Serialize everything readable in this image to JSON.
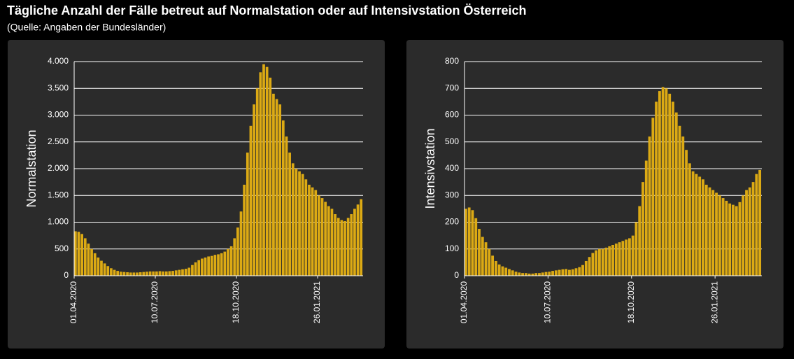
{
  "title": "Tägliche Anzahl der Fälle betreut auf Normalstation oder auf Intensivstation Österreich",
  "subtitle": "(Quelle: Angaben der Bundesländer)",
  "chart_data": [
    {
      "type": "bar",
      "ylabel": "Normalstation",
      "color": "#dcaa14",
      "categories": [
        "01.04.2020",
        null,
        null,
        null,
        null,
        null,
        null,
        null,
        null,
        null,
        null,
        null,
        null,
        null,
        null,
        null,
        null,
        null,
        null,
        null,
        null,
        null,
        null,
        null,
        null,
        "10.07.2020",
        null,
        null,
        null,
        null,
        null,
        null,
        null,
        null,
        null,
        null,
        null,
        null,
        null,
        null,
        null,
        null,
        null,
        null,
        null,
        null,
        null,
        null,
        null,
        null,
        "18.10.2020",
        null,
        null,
        null,
        null,
        null,
        null,
        null,
        null,
        null,
        null,
        null,
        null,
        null,
        null,
        null,
        null,
        null,
        null,
        null,
        null,
        null,
        null,
        null,
        null,
        "26.01.2021",
        null,
        null,
        null,
        null,
        null,
        null,
        null,
        null,
        null,
        null,
        null,
        null,
        null
      ],
      "values": [
        830,
        820,
        780,
        700,
        600,
        500,
        420,
        340,
        280,
        230,
        180,
        140,
        110,
        90,
        75,
        70,
        65,
        60,
        60,
        60,
        65,
        70,
        75,
        80,
        80,
        80,
        85,
        80,
        80,
        85,
        90,
        100,
        110,
        120,
        130,
        150,
        200,
        250,
        290,
        320,
        340,
        360,
        370,
        390,
        400,
        420,
        450,
        500,
        550,
        700,
        900,
        1200,
        1700,
        2300,
        2800,
        3200,
        3500,
        3800,
        3950,
        3900,
        3700,
        3400,
        3300,
        3200,
        2900,
        2600,
        2300,
        2100,
        2000,
        1950,
        1900,
        1800,
        1700,
        1650,
        1600,
        1500,
        1450,
        1380,
        1300,
        1250,
        1150,
        1080,
        1040,
        1020,
        1080,
        1150,
        1250,
        1330,
        1430
      ],
      "ylim": [
        0,
        4000
      ],
      "yticks": [
        0,
        500,
        {
          "value": 1000,
          "label": "1.000"
        },
        {
          "value": 1500,
          "label": "1.500"
        },
        {
          "value": 2000,
          "label": "2.000"
        },
        {
          "value": 2500,
          "label": "2.500"
        },
        {
          "value": 3000,
          "label": "3.000"
        },
        {
          "value": 3500,
          "label": "3.500"
        },
        {
          "value": 4000,
          "label": "4.000"
        }
      ],
      "grid": true
    },
    {
      "type": "bar",
      "ylabel": "Intensivstation",
      "color": "#dcaa14",
      "categories": [
        "01.04.2020",
        null,
        null,
        null,
        null,
        null,
        null,
        null,
        null,
        null,
        null,
        null,
        null,
        null,
        null,
        null,
        null,
        null,
        null,
        null,
        null,
        null,
        null,
        null,
        null,
        "10.07.2020",
        null,
        null,
        null,
        null,
        null,
        null,
        null,
        null,
        null,
        null,
        null,
        null,
        null,
        null,
        null,
        null,
        null,
        null,
        null,
        null,
        null,
        null,
        null,
        null,
        "18.10.2020",
        null,
        null,
        null,
        null,
        null,
        null,
        null,
        null,
        null,
        null,
        null,
        null,
        null,
        null,
        null,
        null,
        null,
        null,
        null,
        null,
        null,
        null,
        null,
        null,
        "26.01.2021",
        null,
        null,
        null,
        null,
        null,
        null,
        null,
        null,
        null,
        null,
        null,
        null,
        null
      ],
      "values": [
        250,
        255,
        245,
        215,
        175,
        145,
        125,
        100,
        75,
        55,
        42,
        35,
        30,
        25,
        20,
        15,
        12,
        10,
        10,
        8,
        8,
        10,
        10,
        12,
        14,
        15,
        18,
        20,
        22,
        24,
        25,
        22,
        24,
        28,
        32,
        40,
        55,
        70,
        85,
        95,
        100,
        100,
        105,
        110,
        115,
        120,
        125,
        130,
        135,
        140,
        150,
        200,
        260,
        350,
        430,
        520,
        590,
        650,
        690,
        705,
        700,
        680,
        650,
        610,
        560,
        520,
        470,
        420,
        390,
        380,
        370,
        360,
        340,
        330,
        320,
        310,
        300,
        290,
        280,
        270,
        265,
        260,
        275,
        300,
        320,
        330,
        350,
        380,
        395
      ],
      "ylim": [
        0,
        800
      ],
      "yticks": [
        0,
        100,
        200,
        300,
        400,
        500,
        600,
        700,
        800
      ],
      "grid": true
    }
  ]
}
